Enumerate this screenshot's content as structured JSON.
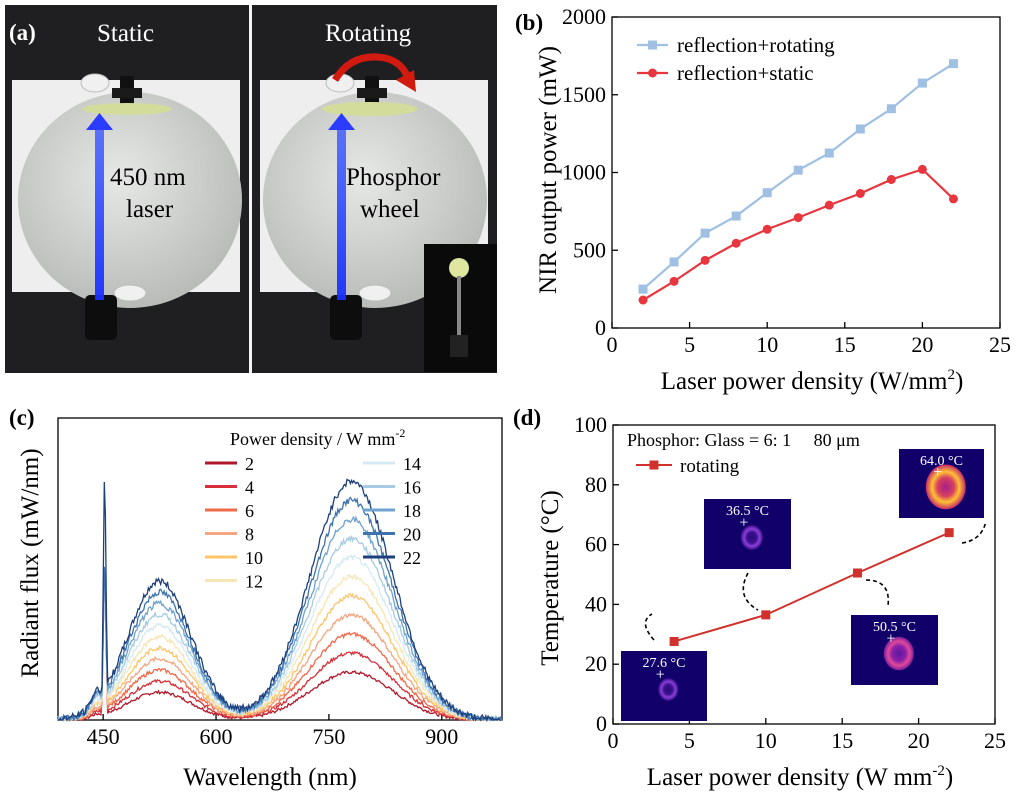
{
  "panel_a": {
    "label": "(a)",
    "left_caption": "Static",
    "right_caption": "Rotating",
    "laser_label_1": "450 nm",
    "laser_label_2": "laser",
    "wheel_label_1": "Phosphor",
    "wheel_label_2": "wheel",
    "colors": {
      "laser": "#2a3cff",
      "arrow": "#d21b10",
      "sphere": "#d9dcd9",
      "phosphor": "#d3dc9b"
    }
  },
  "chart_data": [
    {
      "panel": "(b)",
      "type": "line",
      "xlabel": "Laser power density (W/mm",
      "xlabel_sup": "2",
      "xlabel_end": ")",
      "ylabel": "NIR output power (mW)",
      "xlim": [
        0,
        25
      ],
      "ylim": [
        0,
        2000
      ],
      "xticks": [
        0,
        5,
        10,
        15,
        20,
        25
      ],
      "yticks": [
        0,
        500,
        1000,
        1500,
        2000
      ],
      "legend_position": "top-left",
      "series": [
        {
          "name": "reflection+rotating",
          "color": "#9fbfe3",
          "marker": "square",
          "x": [
            2,
            4,
            6,
            8,
            10,
            12,
            14,
            16,
            18,
            20,
            22
          ],
          "y": [
            250,
            425,
            610,
            720,
            870,
            1015,
            1125,
            1280,
            1410,
            1575,
            1700
          ]
        },
        {
          "name": "reflection+static",
          "color": "#e8363f",
          "marker": "circle",
          "x": [
            2,
            4,
            6,
            8,
            10,
            12,
            14,
            16,
            18,
            20,
            22
          ],
          "y": [
            180,
            300,
            435,
            545,
            635,
            710,
            790,
            865,
            955,
            1020,
            830
          ]
        }
      ]
    },
    {
      "panel": "(c)",
      "type": "line",
      "xlabel": "Wavelength (nm)",
      "ylabel": "Radiant flux (mW/nm)",
      "xlim": [
        390,
        980
      ],
      "xticks": [
        450,
        600,
        750,
        900
      ],
      "legend_title": "Power density / W mm",
      "legend_title_sup": "-2",
      "series": [
        {
          "name": "2",
          "color": "#b2182b",
          "scale": 0.2
        },
        {
          "name": "4",
          "color": "#d6303a",
          "scale": 0.28
        },
        {
          "name": "6",
          "color": "#ef6a4b",
          "scale": 0.36
        },
        {
          "name": "8",
          "color": "#f4a582",
          "scale": 0.44
        },
        {
          "name": "10",
          "color": "#fdc46a",
          "scale": 0.52
        },
        {
          "name": "12",
          "color": "#f7e6b5",
          "scale": 0.6
        },
        {
          "name": "14",
          "color": "#d6eaf3",
          "scale": 0.68
        },
        {
          "name": "16",
          "color": "#a6cbe3",
          "scale": 0.76
        },
        {
          "name": "18",
          "color": "#6fa2cf",
          "scale": 0.84
        },
        {
          "name": "20",
          "color": "#3e73ae",
          "scale": 0.92
        },
        {
          "name": "22",
          "color": "#1d3f7c",
          "scale": 1.0
        }
      ]
    },
    {
      "panel": "(d)",
      "type": "line",
      "xlabel": "Laser power density (W mm",
      "xlabel_sup": "-2",
      "xlabel_end": ")",
      "ylabel": "Temperature (°C)",
      "xlim": [
        0,
        25
      ],
      "ylim": [
        0,
        100
      ],
      "xticks": [
        0,
        5,
        10,
        15,
        20,
        25
      ],
      "yticks": [
        0,
        20,
        40,
        60,
        80,
        100
      ],
      "annotation": "Phosphor: Glass = 6: 1     80 μm",
      "series": [
        {
          "name": "rotating",
          "color": "#d0312d",
          "marker": "square",
          "x": [
            4,
            10,
            16,
            22
          ],
          "y": [
            27.6,
            36.5,
            50.5,
            64.0
          ]
        }
      ],
      "thermal_labels": [
        "27.6 °C",
        "36.5 °C",
        "50.5 °C",
        "64.0 °C"
      ]
    }
  ]
}
